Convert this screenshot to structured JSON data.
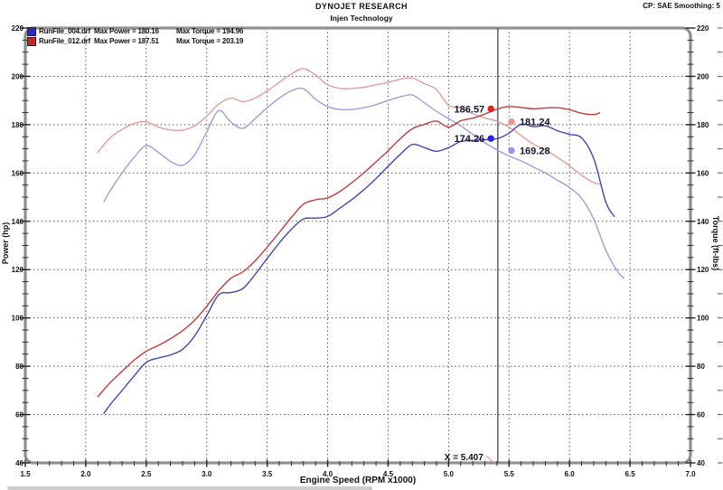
{
  "header": {
    "title": "DYNOJET RESEARCH",
    "subtitle": "Injen Technology",
    "settings": "CP: SAE  Smoothing: 5"
  },
  "legend": [
    {
      "file": "RunFile_004.drf",
      "max_power_label": "Max Power = 180.16",
      "max_torque_label": "Max Torque = 194.96",
      "color": "#2a2ac8"
    },
    {
      "file": "RunFile_012.drf",
      "max_power_label": "Max Power = 187.51",
      "max_torque_label": "Max Torque = 203.19",
      "color": "#cc2222"
    }
  ],
  "chart_data": {
    "type": "line",
    "title": "DYNOJET RESEARCH",
    "subtitle": "Injen Technology",
    "xlabel": "Engine Speed (RPM x1000)",
    "ylabel_left": "Power (hp)",
    "ylabel_right": "Torque (ft-lbs)",
    "xlim": [
      1.5,
      7.0
    ],
    "ylim": [
      40,
      220
    ],
    "x_ticks": [
      1.5,
      2.0,
      2.5,
      3.0,
      3.5,
      4.0,
      4.5,
      5.0,
      5.5,
      6.0,
      6.5,
      7.0
    ],
    "y_ticks": [
      40,
      60,
      80,
      100,
      120,
      140,
      160,
      180,
      200,
      220
    ],
    "grid": true,
    "grid_color": "#5f5f5f",
    "cursor": {
      "x": 5.407,
      "label": "X = 5.407"
    },
    "series": [
      {
        "id": "run004-torque",
        "name": "RunFile_004.drf Torque (ft-lbs)",
        "axis": "torque_ftlbs",
        "color": "#9e9edd",
        "points": [
          [
            2.15,
            148.0
          ],
          [
            2.2,
            152.5
          ],
          [
            2.3,
            160.0
          ],
          [
            2.4,
            166.5
          ],
          [
            2.5,
            171.3
          ],
          [
            2.6,
            168.5
          ],
          [
            2.7,
            164.8
          ],
          [
            2.8,
            163.2
          ],
          [
            2.9,
            167.5
          ],
          [
            3.0,
            177.0
          ],
          [
            3.1,
            185.8
          ],
          [
            3.2,
            181.0
          ],
          [
            3.3,
            178.5
          ],
          [
            3.4,
            182.5
          ],
          [
            3.5,
            187.0
          ],
          [
            3.6,
            191.0
          ],
          [
            3.7,
            194.0
          ],
          [
            3.8,
            194.9
          ],
          [
            3.9,
            190.5
          ],
          [
            4.0,
            187.5
          ],
          [
            4.1,
            186.3
          ],
          [
            4.2,
            186.3
          ],
          [
            4.3,
            187.0
          ],
          [
            4.4,
            188.3
          ],
          [
            4.5,
            190.0
          ],
          [
            4.6,
            191.5
          ],
          [
            4.7,
            192.3
          ],
          [
            4.8,
            189.0
          ],
          [
            4.9,
            185.5
          ],
          [
            5.0,
            182.5
          ],
          [
            5.1,
            179.5
          ],
          [
            5.2,
            176.0
          ],
          [
            5.3,
            172.5
          ],
          [
            5.41,
            169.3
          ],
          [
            5.5,
            167.0
          ],
          [
            5.6,
            165.0
          ],
          [
            5.7,
            162.5
          ],
          [
            5.8,
            160.0
          ],
          [
            5.9,
            157.0
          ],
          [
            6.0,
            154.0
          ],
          [
            6.1,
            149.5
          ],
          [
            6.2,
            141.0
          ],
          [
            6.3,
            128.0
          ],
          [
            6.4,
            119.0
          ],
          [
            6.45,
            116.5
          ]
        ]
      },
      {
        "id": "run012-torque",
        "name": "RunFile_012.drf Torque (ft-lbs)",
        "axis": "torque_ftlbs",
        "color": "#e59d9d",
        "points": [
          [
            2.1,
            168.5
          ],
          [
            2.2,
            174.5
          ],
          [
            2.3,
            178.0
          ],
          [
            2.4,
            180.5
          ],
          [
            2.5,
            181.2
          ],
          [
            2.6,
            179.0
          ],
          [
            2.7,
            177.8
          ],
          [
            2.8,
            177.7
          ],
          [
            2.9,
            179.5
          ],
          [
            3.0,
            183.5
          ],
          [
            3.1,
            188.5
          ],
          [
            3.2,
            191.0
          ],
          [
            3.3,
            189.5
          ],
          [
            3.4,
            191.0
          ],
          [
            3.5,
            194.0
          ],
          [
            3.6,
            197.5
          ],
          [
            3.7,
            201.0
          ],
          [
            3.8,
            203.2
          ],
          [
            3.9,
            200.5
          ],
          [
            4.0,
            196.5
          ],
          [
            4.1,
            195.0
          ],
          [
            4.2,
            195.0
          ],
          [
            4.3,
            195.5
          ],
          [
            4.4,
            196.5
          ],
          [
            4.5,
            197.5
          ],
          [
            4.6,
            198.8
          ],
          [
            4.7,
            199.3
          ],
          [
            4.8,
            197.0
          ],
          [
            4.9,
            194.5
          ],
          [
            5.0,
            188.0
          ],
          [
            5.1,
            187.0
          ],
          [
            5.2,
            184.5
          ],
          [
            5.3,
            182.8
          ],
          [
            5.41,
            181.2
          ],
          [
            5.5,
            179.0
          ],
          [
            5.6,
            175.5
          ],
          [
            5.7,
            172.0
          ],
          [
            5.8,
            169.5
          ],
          [
            5.9,
            166.5
          ],
          [
            6.0,
            163.0
          ],
          [
            6.1,
            159.0
          ],
          [
            6.2,
            156.0
          ],
          [
            6.25,
            155.5
          ]
        ]
      },
      {
        "id": "run004-power",
        "name": "RunFile_004.drf Power (hp)",
        "axis": "power_hp",
        "color": "#4545b8",
        "points": [
          [
            2.15,
            60.5
          ],
          [
            2.2,
            64.0
          ],
          [
            2.3,
            70.0
          ],
          [
            2.4,
            76.0
          ],
          [
            2.5,
            81.6
          ],
          [
            2.6,
            83.4
          ],
          [
            2.7,
            84.7
          ],
          [
            2.8,
            87.0
          ],
          [
            2.9,
            92.5
          ],
          [
            3.0,
            101.0
          ],
          [
            3.1,
            109.6
          ],
          [
            3.2,
            110.5
          ],
          [
            3.3,
            112.2
          ],
          [
            3.4,
            118.0
          ],
          [
            3.5,
            124.6
          ],
          [
            3.6,
            131.0
          ],
          [
            3.7,
            136.7
          ],
          [
            3.8,
            141.0
          ],
          [
            3.9,
            141.3
          ],
          [
            4.0,
            142.0
          ],
          [
            4.1,
            145.4
          ],
          [
            4.2,
            149.0
          ],
          [
            4.3,
            153.1
          ],
          [
            4.4,
            157.7
          ],
          [
            4.5,
            162.8
          ],
          [
            4.6,
            167.7
          ],
          [
            4.7,
            171.8
          ],
          [
            4.8,
            170.5
          ],
          [
            4.9,
            169.0
          ],
          [
            5.0,
            170.5
          ],
          [
            5.1,
            173.0
          ],
          [
            5.2,
            173.5
          ],
          [
            5.3,
            173.8
          ],
          [
            5.41,
            174.3
          ],
          [
            5.5,
            176.5
          ],
          [
            5.6,
            180.2
          ],
          [
            5.7,
            179.2
          ],
          [
            5.8,
            179.5
          ],
          [
            5.9,
            177.5
          ],
          [
            6.0,
            176.0
          ],
          [
            6.1,
            174.5
          ],
          [
            6.2,
            166.0
          ],
          [
            6.3,
            148.0
          ],
          [
            6.37,
            142.0
          ]
        ]
      },
      {
        "id": "run012-power",
        "name": "RunFile_012.drf Power (hp)",
        "axis": "power_hp",
        "color": "#c43c3c",
        "points": [
          [
            2.1,
            67.4
          ],
          [
            2.2,
            73.1
          ],
          [
            2.3,
            77.9
          ],
          [
            2.4,
            82.5
          ],
          [
            2.5,
            86.2
          ],
          [
            2.6,
            88.6
          ],
          [
            2.7,
            91.4
          ],
          [
            2.8,
            94.7
          ],
          [
            2.9,
            99.1
          ],
          [
            3.0,
            104.8
          ],
          [
            3.1,
            111.3
          ],
          [
            3.2,
            116.4
          ],
          [
            3.3,
            119.1
          ],
          [
            3.4,
            123.6
          ],
          [
            3.5,
            129.3
          ],
          [
            3.6,
            135.4
          ],
          [
            3.7,
            141.6
          ],
          [
            3.8,
            147.1
          ],
          [
            3.9,
            148.9
          ],
          [
            4.0,
            149.7
          ],
          [
            4.1,
            152.3
          ],
          [
            4.2,
            156.0
          ],
          [
            4.3,
            160.1
          ],
          [
            4.4,
            164.6
          ],
          [
            4.5,
            169.2
          ],
          [
            4.6,
            174.2
          ],
          [
            4.7,
            178.3
          ],
          [
            4.8,
            180.1
          ],
          [
            4.9,
            181.5
          ],
          [
            5.0,
            179.0
          ],
          [
            5.1,
            181.6
          ],
          [
            5.2,
            182.7
          ],
          [
            5.3,
            184.4
          ],
          [
            5.41,
            186.6
          ],
          [
            5.5,
            187.5
          ],
          [
            5.6,
            187.1
          ],
          [
            5.7,
            186.6
          ],
          [
            5.8,
            186.9
          ],
          [
            5.9,
            187.0
          ],
          [
            6.0,
            186.2
          ],
          [
            6.1,
            184.7
          ],
          [
            6.2,
            184.2
          ],
          [
            6.25,
            184.9
          ]
        ]
      }
    ],
    "markers": [
      {
        "series": "run012-power",
        "x": 5.35,
        "value": 186.57,
        "label": "186.57",
        "dot_color": "#e51f1f",
        "side": "left"
      },
      {
        "series": "run012-torque",
        "x": 5.52,
        "value": 181.24,
        "label": "181.24",
        "dot_color": "#ef9292",
        "side": "right"
      },
      {
        "series": "run004-power",
        "x": 5.35,
        "value": 174.26,
        "label": "174.26",
        "dot_color": "#2525de",
        "side": "left"
      },
      {
        "series": "run004-torque",
        "x": 5.52,
        "value": 169.28,
        "label": "169.28",
        "dot_color": "#9494ef",
        "side": "right"
      }
    ],
    "marker_label_color": "#16162c",
    "frame_color": "#a8a8a8",
    "cursor_color": "#4a4a4a"
  }
}
